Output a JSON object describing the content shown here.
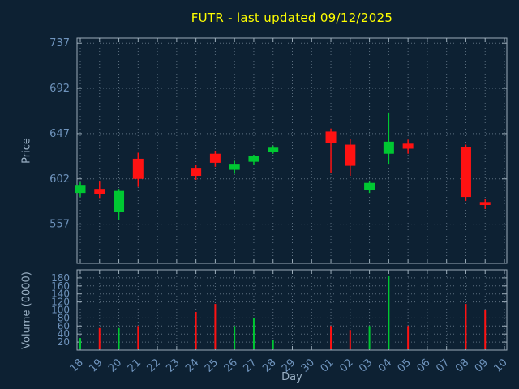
{
  "chart_data": {
    "type": "candlestick",
    "title": "FUTR - last updated 09/12/2025",
    "xlabel": "Day",
    "price_ylabel": "Price",
    "volume_ylabel": "Volume (0000)",
    "colors": {
      "up": "#00c832",
      "down": "#ff1212",
      "background": "#0d2133",
      "grid": "#5c6f80",
      "border": "#9aabb8",
      "tick_label": "#6f94bd",
      "axis_label": "#9ab0c4",
      "title": "#ffff00"
    },
    "price_ticks": [
      557,
      602,
      647,
      692,
      737
    ],
    "price_range": [
      518,
      742
    ],
    "volume_ticks": [
      20,
      40,
      60,
      80,
      100,
      120,
      140,
      160,
      180
    ],
    "volume_range": [
      0,
      200
    ],
    "x_labels": [
      "18",
      "19",
      "20",
      "21",
      "22",
      "23",
      "24",
      "25",
      "26",
      "27",
      "28",
      "29",
      "30",
      "01",
      "02",
      "03",
      "04",
      "05",
      "06",
      "07",
      "08",
      "09",
      "10"
    ],
    "candles": [
      {
        "x_index": 0,
        "day": "18",
        "open": 588,
        "high": 599,
        "low": 584,
        "close": 596,
        "volume": 30,
        "direction": "up"
      },
      {
        "x_index": 1,
        "day": "19",
        "open": 592,
        "high": 600,
        "low": 583,
        "close": 587,
        "volume": 55,
        "direction": "down"
      },
      {
        "x_index": 2,
        "day": "20",
        "open": 569,
        "high": 592,
        "low": 561,
        "close": 590,
        "volume": 55,
        "direction": "up"
      },
      {
        "x_index": 3,
        "day": "21",
        "open": 622,
        "high": 628,
        "low": 594,
        "close": 602,
        "volume": 60,
        "direction": "down"
      },
      {
        "x_index": 6,
        "day": "24",
        "open": 613,
        "high": 616,
        "low": 601,
        "close": 605,
        "volume": 95,
        "direction": "down"
      },
      {
        "x_index": 7,
        "day": "25",
        "open": 627,
        "high": 630,
        "low": 614,
        "close": 618,
        "volume": 115,
        "direction": "down"
      },
      {
        "x_index": 8,
        "day": "26",
        "open": 611,
        "high": 620,
        "low": 607,
        "close": 617,
        "volume": 60,
        "direction": "up"
      },
      {
        "x_index": 9,
        "day": "27",
        "open": 619,
        "high": 626,
        "low": 616,
        "close": 625,
        "volume": 80,
        "direction": "up"
      },
      {
        "x_index": 10,
        "day": "28",
        "open": 629,
        "high": 635,
        "low": 627,
        "close": 633,
        "volume": 25,
        "direction": "up"
      },
      {
        "x_index": 13,
        "day": "01",
        "open": 649,
        "high": 652,
        "low": 608,
        "close": 638,
        "volume": 60,
        "direction": "down"
      },
      {
        "x_index": 14,
        "day": "02",
        "open": 636,
        "high": 642,
        "low": 605,
        "close": 615,
        "volume": 50,
        "direction": "down"
      },
      {
        "x_index": 15,
        "day": "03",
        "open": 591,
        "high": 600,
        "low": 588,
        "close": 598,
        "volume": 60,
        "direction": "up"
      },
      {
        "x_index": 16,
        "day": "04",
        "open": 627,
        "high": 668,
        "low": 617,
        "close": 639,
        "volume": 185,
        "direction": "up"
      },
      {
        "x_index": 17,
        "day": "05",
        "open": 637,
        "high": 641,
        "low": 627,
        "close": 632,
        "volume": 60,
        "direction": "down"
      },
      {
        "x_index": 20,
        "day": "08",
        "open": 634,
        "high": 636,
        "low": 580,
        "close": 584,
        "volume": 115,
        "direction": "down"
      },
      {
        "x_index": 21,
        "day": "09",
        "open": 579,
        "high": 582,
        "low": 572,
        "close": 576,
        "volume": 100,
        "direction": "down"
      }
    ]
  }
}
